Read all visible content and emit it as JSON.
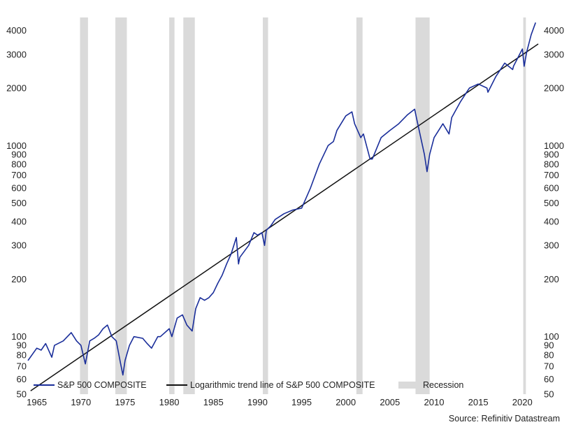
{
  "chart_data": {
    "type": "line",
    "title": "",
    "xlabel": "",
    "ylabel": "",
    "y_scale": "log",
    "xlim": [
      1964,
      2021.8
    ],
    "ylim": [
      50,
      4800
    ],
    "x_ticks": [
      1965,
      1970,
      1975,
      1980,
      1985,
      1990,
      1995,
      2000,
      2005,
      2010,
      2015,
      2020
    ],
    "x_tick_labels": [
      "1965",
      "1970",
      "1975",
      "1980",
      "1985",
      "1990",
      "1995",
      "2000",
      "2005",
      "2010",
      "2015",
      "2020"
    ],
    "y_ticks": [
      50,
      60,
      70,
      80,
      90,
      100,
      200,
      300,
      400,
      500,
      600,
      700,
      800,
      900,
      1000,
      2000,
      3000,
      4000
    ],
    "y_tick_labels": [
      "50",
      "60",
      "70",
      "80",
      "90",
      "100",
      "200",
      "300",
      "400",
      "500",
      "600",
      "700",
      "800",
      "900",
      "1000",
      "2000",
      "3000",
      "4000"
    ],
    "recessions": [
      [
        1969.9,
        1970.8
      ],
      [
        1973.9,
        1975.2
      ],
      [
        1980.0,
        1980.6
      ],
      [
        1981.6,
        1982.9
      ],
      [
        1990.6,
        1991.2
      ],
      [
        2001.2,
        2001.9
      ],
      [
        2007.9,
        2009.5
      ],
      [
        2020.1,
        2020.4
      ]
    ],
    "series": [
      {
        "name": "S&P 500 COMPOSITE",
        "color": "#1a2e9a",
        "x": [
          1964.0,
          1965.0,
          1965.5,
          1966.0,
          1966.7,
          1967.0,
          1968.0,
          1968.9,
          1969.5,
          1970.0,
          1970.5,
          1971.0,
          1971.5,
          1972.0,
          1972.5,
          1973.0,
          1973.5,
          1974.0,
          1974.5,
          1974.75,
          1975.0,
          1975.5,
          1976.0,
          1977.0,
          1977.5,
          1978.0,
          1978.7,
          1979.0,
          1980.0,
          1980.3,
          1980.9,
          1981.5,
          1982.0,
          1982.6,
          1983.0,
          1983.5,
          1984.0,
          1984.5,
          1985.0,
          1985.5,
          1986.0,
          1986.5,
          1987.0,
          1987.6,
          1987.85,
          1988.0,
          1989.0,
          1989.6,
          1990.0,
          1990.5,
          1990.8,
          1991.0,
          1991.5,
          1992.0,
          1993.0,
          1994.0,
          1995.0,
          1996.0,
          1997.0,
          1998.0,
          1998.6,
          1999.0,
          2000.0,
          2000.7,
          2001.0,
          2001.7,
          2002.0,
          2002.75,
          2003.0,
          2004.0,
          2005.0,
          2006.0,
          2007.0,
          2007.8,
          2008.0,
          2008.9,
          2009.2,
          2009.5,
          2010.0,
          2011.0,
          2011.7,
          2012.0,
          2013.0,
          2014.0,
          2015.0,
          2016.0,
          2016.1,
          2017.0,
          2018.0,
          2018.9,
          2019.0,
          2020.0,
          2020.2,
          2020.5,
          2021.0,
          2021.5
        ],
        "y": [
          75,
          87,
          85,
          92,
          78,
          90,
          95,
          105,
          95,
          90,
          72,
          95,
          98,
          102,
          110,
          115,
          100,
          95,
          72,
          63,
          75,
          90,
          100,
          98,
          92,
          87,
          100,
          100,
          110,
          100,
          125,
          130,
          115,
          107,
          140,
          160,
          155,
          160,
          170,
          190,
          210,
          240,
          270,
          330,
          240,
          260,
          300,
          350,
          340,
          350,
          300,
          360,
          380,
          410,
          440,
          460,
          470,
          600,
          800,
          1000,
          1050,
          1200,
          1430,
          1500,
          1300,
          1100,
          1150,
          850,
          850,
          1100,
          1200,
          1300,
          1450,
          1550,
          1400,
          900,
          730,
          900,
          1100,
          1300,
          1150,
          1400,
          1700,
          2000,
          2100,
          2000,
          1900,
          2300,
          2700,
          2500,
          2600,
          3200,
          2600,
          3100,
          3800,
          4400
        ]
      },
      {
        "name": "Logarithmic trend line of S&P 500 COMPOSITE",
        "color": "#111111",
        "x": [
          1964.3,
          2021.8
        ],
        "y": [
          52,
          3400
        ]
      },
      {
        "name": "Recession",
        "color": "#dadada"
      }
    ],
    "source": "Source: Refinitiv Datastream"
  }
}
